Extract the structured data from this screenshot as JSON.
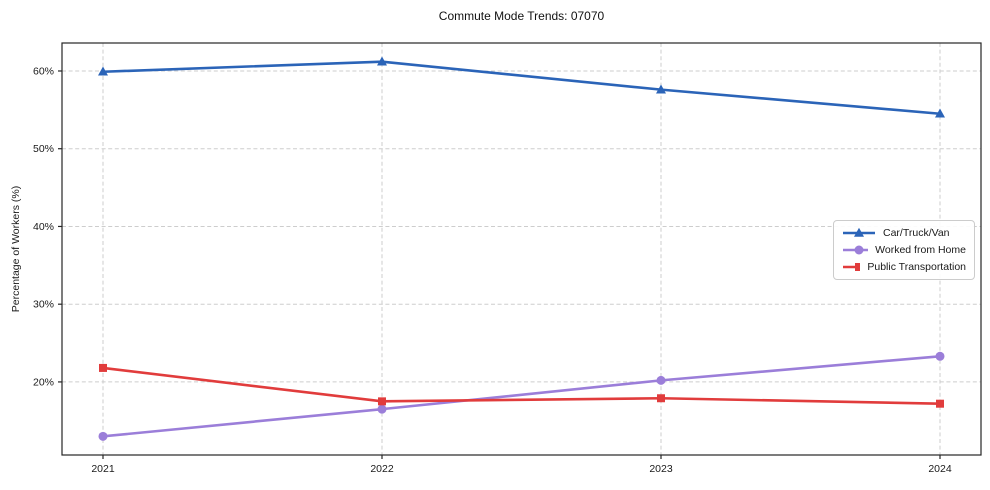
{
  "chart_data": {
    "type": "line",
    "title": "Commute Mode Trends: 07070",
    "xlabel": "",
    "ylabel": "Percentage of Workers (%)",
    "categories": [
      "2021",
      "2022",
      "2023",
      "2024"
    ],
    "y_ticks": [
      20,
      30,
      40,
      50,
      60
    ],
    "y_tick_labels": [
      "20%",
      "30%",
      "40%",
      "50%",
      "60%"
    ],
    "ylim": [
      10.6,
      63.6
    ],
    "grid": {
      "style": "dashed",
      "color": "#cdcdcd"
    },
    "axis_color": "#262626",
    "legend": {
      "position": "center-right",
      "border_color": "#cccccc",
      "background": "#ffffff"
    },
    "series": [
      {
        "name": "Car/Truck/Van",
        "color": "#2b64b8",
        "marker": "triangle",
        "values": [
          59.9,
          61.2,
          57.6,
          54.5
        ]
      },
      {
        "name": "Worked from Home",
        "color": "#9b7ed9",
        "marker": "circle",
        "values": [
          13.0,
          16.5,
          20.2,
          23.3
        ]
      },
      {
        "name": "Public Transportation",
        "color": "#e13c3c",
        "marker": "square",
        "values": [
          21.8,
          17.5,
          17.9,
          17.2
        ]
      }
    ]
  }
}
